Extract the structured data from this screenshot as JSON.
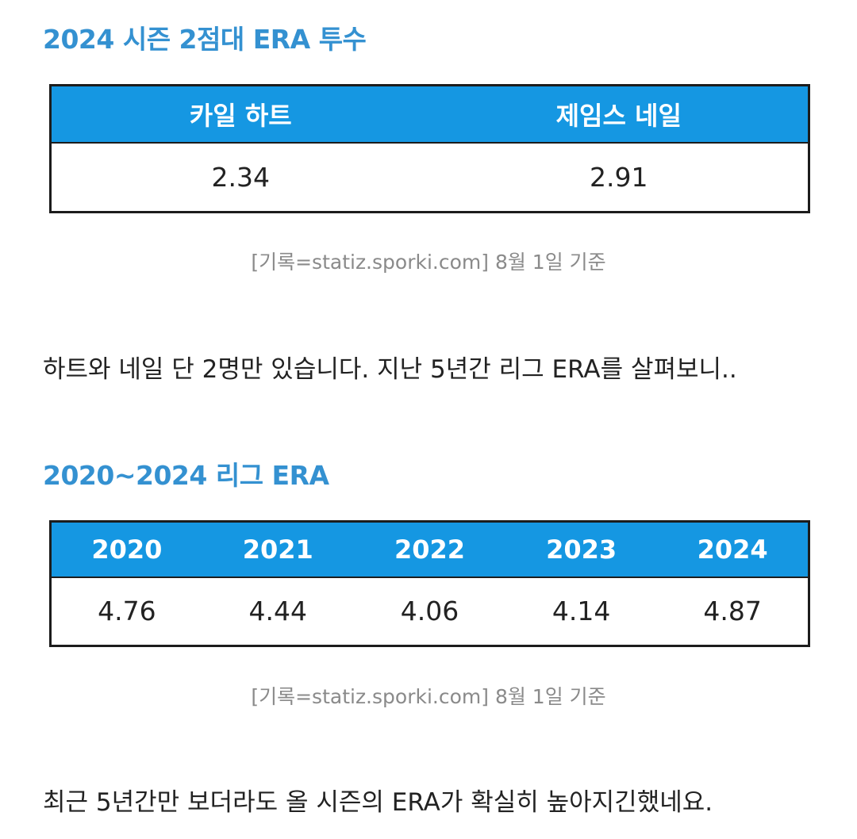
{
  "section1": {
    "heading": "2024 시즌 2점대 ERA 투수",
    "table": {
      "headers": [
        "카일 하트",
        "제임스 네일"
      ],
      "values": [
        "2.34",
        "2.91"
      ]
    },
    "source": "[기록=statiz.sporki.com] 8월 1일 기준"
  },
  "paragraph1": "하트와 네일 단 2명만 있습니다. 지난 5년간 리그 ERA를 살펴보니..",
  "section2": {
    "heading": "2020~2024 리그 ERA",
    "table": {
      "headers": [
        "2020",
        "2021",
        "2022",
        "2023",
        "2024"
      ],
      "values": [
        "4.76",
        "4.44",
        "4.06",
        "4.14",
        "4.87"
      ]
    },
    "source": "[기록=statiz.sporki.com] 8월 1일 기준"
  },
  "paragraph2": "최근 5년간만 보더라도 올 시즌의 ERA가 확실히 높아지긴했네요.",
  "colors": {
    "heading": "#3491d1",
    "table_header_bg": "#1597e2",
    "table_header_text": "#ffffff",
    "source_text": "#8a8a8a"
  }
}
